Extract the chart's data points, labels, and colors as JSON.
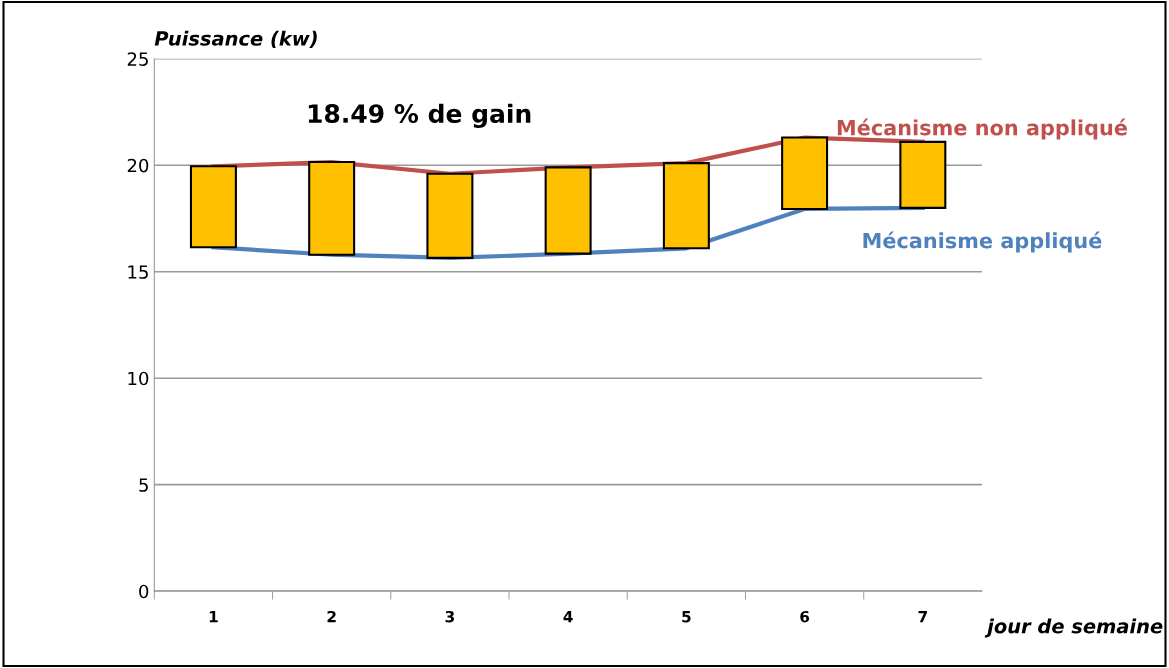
{
  "chart_data": {
    "type": "line",
    "xlabel": "jour de semaine",
    "ylabel": "Puissance (kw)",
    "categories": [
      "1",
      "2",
      "3",
      "4",
      "5",
      "6",
      "7"
    ],
    "series": [
      {
        "type": "bar",
        "color": "#ffc000",
        "base": [
          16.15,
          15.8,
          15.65,
          15.85,
          16.1,
          17.95,
          18.0
        ],
        "values": [
          3.8,
          4.35,
          3.95,
          4.05,
          4.0,
          3.35,
          3.1
        ]
      },
      {
        "name": "Mécanisme non appliqué",
        "color": "#c0504d",
        "values": [
          19.95,
          20.15,
          19.6,
          19.9,
          20.1,
          21.3,
          21.1
        ]
      },
      {
        "name": "Mécanisme appliqué",
        "color": "#4f81bd",
        "values": [
          16.15,
          15.8,
          15.65,
          15.85,
          16.1,
          17.95,
          18.0
        ]
      }
    ],
    "annotations": [
      "18.49 % de gain"
    ],
    "ylim": [
      0,
      25
    ],
    "yticks": [
      0,
      5,
      10,
      15,
      20,
      25
    ],
    "grid": "y",
    "legend": false
  }
}
